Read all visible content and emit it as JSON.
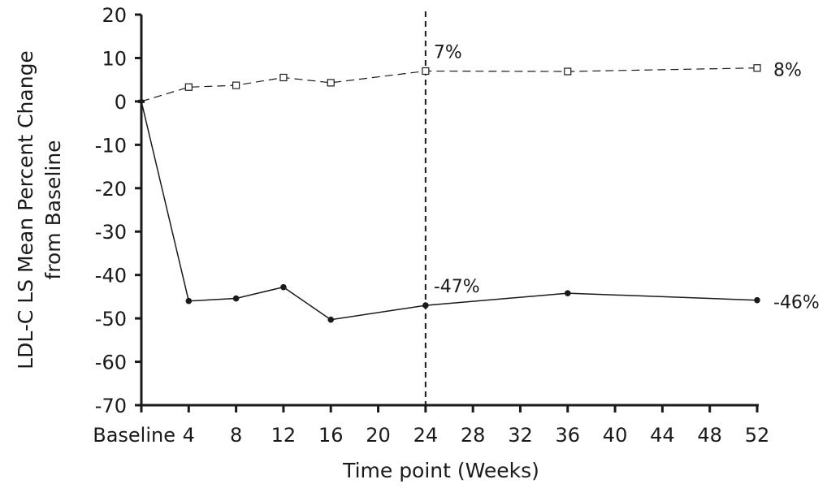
{
  "chart_data": {
    "type": "line",
    "title": "",
    "xlabel": "Time point (Weeks)",
    "ylabel_line1": "LDL-C LS Mean Percent Change",
    "ylabel_line2": "from Baseline",
    "xlim": [
      0,
      52
    ],
    "ylim": [
      -70,
      20
    ],
    "y_ticks": [
      20,
      10,
      0,
      -10,
      -20,
      -30,
      -40,
      -50,
      -60,
      -70
    ],
    "y_tick_labels": [
      "20",
      "10",
      "0",
      "-10",
      "-20",
      "-30",
      "-40",
      "-50",
      "-60",
      "-70"
    ],
    "x_ticks": [
      0,
      4,
      8,
      12,
      16,
      20,
      24,
      28,
      32,
      36,
      40,
      44,
      48,
      52
    ],
    "x_tick_labels": [
      "Baseline",
      "4",
      "8",
      "12",
      "16",
      "20",
      "24",
      "28",
      "32",
      "36",
      "40",
      "44",
      "48",
      "52"
    ],
    "grid": false,
    "reference_line_x": 24,
    "series": [
      {
        "marker": "open-square",
        "line_style": "dashed",
        "points": [
          {
            "x": 0,
            "y": 0
          },
          {
            "x": 4,
            "y": 3.3
          },
          {
            "x": 8,
            "y": 3.7
          },
          {
            "x": 12,
            "y": 5.5
          },
          {
            "x": 16,
            "y": 4.3
          },
          {
            "x": 24,
            "y": 7.0
          },
          {
            "x": 36,
            "y": 6.9
          },
          {
            "x": 52,
            "y": 7.7
          }
        ]
      },
      {
        "marker": "filled-circle",
        "line_style": "solid",
        "points": [
          {
            "x": 0,
            "y": 0
          },
          {
            "x": 4,
            "y": -46.0
          },
          {
            "x": 8,
            "y": -45.4
          },
          {
            "x": 12,
            "y": -42.8
          },
          {
            "x": 16,
            "y": -50.3
          },
          {
            "x": 24,
            "y": -47.0
          },
          {
            "x": 36,
            "y": -44.2
          },
          {
            "x": 52,
            "y": -45.8
          }
        ]
      }
    ],
    "annotations": [
      {
        "text": "7%",
        "series": 0,
        "x": 24
      },
      {
        "text": "8%",
        "series": 0,
        "x": 52
      },
      {
        "text": "-47%",
        "series": 1,
        "x": 24
      },
      {
        "text": "-46%",
        "series": 1,
        "x": 52
      }
    ]
  }
}
